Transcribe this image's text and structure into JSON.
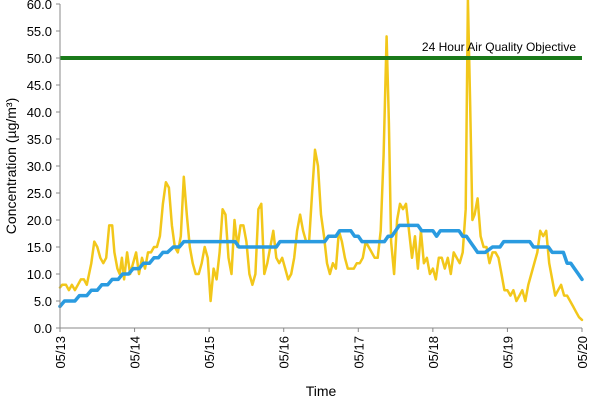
{
  "chart_data": {
    "type": "line",
    "xlabel": "Time",
    "ylabel": "Concentration (µg/m³)",
    "ylim": [
      0,
      60
    ],
    "yticks": [
      "0.0",
      "5.0",
      "10.0",
      "15.0",
      "20.0",
      "25.0",
      "30.0",
      "35.0",
      "40.0",
      "45.0",
      "50.0",
      "55.0",
      "60.0"
    ],
    "xticks": [
      "05/13",
      "05/14",
      "05/15",
      "05/16",
      "05/17",
      "05/18",
      "05/19",
      "05/20"
    ],
    "grid": false,
    "colors": {
      "hourly": "#f2c71a",
      "rolling": "#2a9be0",
      "objective": "#1a7a1a"
    },
    "objective": {
      "label": "24 Hour Air Quality Objective",
      "value": 50
    },
    "series": [
      {
        "key": "hourly",
        "points": [
          [
            0.0,
            7.5
          ],
          [
            0.03,
            8
          ],
          [
            0.08,
            8
          ],
          [
            0.12,
            7
          ],
          [
            0.16,
            8
          ],
          [
            0.2,
            7
          ],
          [
            0.24,
            8
          ],
          [
            0.28,
            9
          ],
          [
            0.32,
            9
          ],
          [
            0.36,
            8
          ],
          [
            0.42,
            12
          ],
          [
            0.46,
            16
          ],
          [
            0.5,
            15
          ],
          [
            0.54,
            13
          ],
          [
            0.58,
            12
          ],
          [
            0.62,
            13
          ],
          [
            0.66,
            19
          ],
          [
            0.7,
            19
          ],
          [
            0.73,
            14
          ],
          [
            0.77,
            11
          ],
          [
            0.8,
            10
          ],
          [
            0.83,
            13
          ],
          [
            0.86,
            9
          ],
          [
            0.9,
            14
          ],
          [
            0.94,
            10
          ],
          [
            0.98,
            12
          ],
          [
            1.02,
            14
          ],
          [
            1.06,
            10
          ],
          [
            1.1,
            13
          ],
          [
            1.14,
            11
          ],
          [
            1.18,
            14
          ],
          [
            1.22,
            14
          ],
          [
            1.26,
            15
          ],
          [
            1.3,
            15
          ],
          [
            1.34,
            17
          ],
          [
            1.38,
            23
          ],
          [
            1.42,
            27
          ],
          [
            1.46,
            26
          ],
          [
            1.5,
            19
          ],
          [
            1.54,
            15
          ],
          [
            1.58,
            14
          ],
          [
            1.62,
            17
          ],
          [
            1.66,
            28
          ],
          [
            1.7,
            21
          ],
          [
            1.74,
            15
          ],
          [
            1.78,
            12
          ],
          [
            1.82,
            10
          ],
          [
            1.86,
            10
          ],
          [
            1.9,
            12
          ],
          [
            1.94,
            15
          ],
          [
            1.98,
            13
          ],
          [
            2.02,
            5
          ],
          [
            2.06,
            11
          ],
          [
            2.1,
            9
          ],
          [
            2.14,
            14
          ],
          [
            2.18,
            22
          ],
          [
            2.22,
            21
          ],
          [
            2.26,
            13
          ],
          [
            2.3,
            10
          ],
          [
            2.34,
            20
          ],
          [
            2.38,
            15
          ],
          [
            2.42,
            19
          ],
          [
            2.46,
            19
          ],
          [
            2.5,
            16
          ],
          [
            2.54,
            10
          ],
          [
            2.58,
            8
          ],
          [
            2.62,
            10
          ],
          [
            2.66,
            22
          ],
          [
            2.7,
            23
          ],
          [
            2.74,
            10
          ],
          [
            2.78,
            12
          ],
          [
            2.82,
            15
          ],
          [
            2.86,
            18
          ],
          [
            2.9,
            13
          ],
          [
            2.94,
            12
          ],
          [
            2.98,
            13
          ],
          [
            3.02,
            11
          ],
          [
            3.06,
            9
          ],
          [
            3.1,
            10
          ],
          [
            3.14,
            13
          ],
          [
            3.18,
            18
          ],
          [
            3.22,
            21
          ],
          [
            3.26,
            18
          ],
          [
            3.3,
            16
          ],
          [
            3.34,
            16
          ],
          [
            3.38,
            25
          ],
          [
            3.42,
            33
          ],
          [
            3.46,
            30
          ],
          [
            3.5,
            21
          ],
          [
            3.54,
            17
          ],
          [
            3.58,
            12
          ],
          [
            3.62,
            10
          ],
          [
            3.66,
            12
          ],
          [
            3.7,
            11
          ],
          [
            3.74,
            18
          ],
          [
            3.78,
            16
          ],
          [
            3.82,
            13
          ],
          [
            3.86,
            11
          ],
          [
            3.9,
            11
          ],
          [
            3.94,
            11
          ],
          [
            3.98,
            12
          ],
          [
            4.02,
            12
          ],
          [
            4.06,
            13
          ],
          [
            4.1,
            16
          ],
          [
            4.14,
            15
          ],
          [
            4.18,
            14
          ],
          [
            4.22,
            13
          ],
          [
            4.26,
            13
          ],
          [
            4.3,
            18
          ],
          [
            4.34,
            32
          ],
          [
            4.38,
            54
          ],
          [
            4.41,
            38
          ],
          [
            4.44,
            16
          ],
          [
            4.48,
            10
          ],
          [
            4.52,
            20
          ],
          [
            4.56,
            23
          ],
          [
            4.6,
            22
          ],
          [
            4.64,
            23
          ],
          [
            4.68,
            18
          ],
          [
            4.72,
            13
          ],
          [
            4.76,
            17
          ],
          [
            4.8,
            11
          ],
          [
            4.84,
            18
          ],
          [
            4.88,
            12
          ],
          [
            4.92,
            13
          ],
          [
            4.96,
            10
          ],
          [
            5.0,
            11
          ],
          [
            5.04,
            9
          ],
          [
            5.08,
            13
          ],
          [
            5.12,
            13
          ],
          [
            5.16,
            11
          ],
          [
            5.2,
            13
          ],
          [
            5.24,
            10
          ],
          [
            5.28,
            14
          ],
          [
            5.32,
            13
          ],
          [
            5.36,
            12
          ],
          [
            5.4,
            14
          ],
          [
            5.44,
            22
          ],
          [
            5.47,
            61
          ],
          [
            5.5,
            42
          ],
          [
            5.53,
            20
          ],
          [
            5.56,
            21
          ],
          [
            5.6,
            24
          ],
          [
            5.64,
            17
          ],
          [
            5.68,
            15
          ],
          [
            5.72,
            15
          ],
          [
            5.76,
            12
          ],
          [
            5.8,
            14
          ],
          [
            5.84,
            14
          ],
          [
            5.88,
            13
          ],
          [
            5.92,
            10
          ],
          [
            5.96,
            7
          ],
          [
            6.0,
            7
          ],
          [
            6.04,
            6
          ],
          [
            6.08,
            7
          ],
          [
            6.12,
            5
          ],
          [
            6.16,
            6
          ],
          [
            6.2,
            7
          ],
          [
            6.24,
            5
          ],
          [
            6.28,
            8
          ],
          [
            6.32,
            10
          ],
          [
            6.36,
            12
          ],
          [
            6.4,
            14
          ],
          [
            6.44,
            18
          ],
          [
            6.48,
            17
          ],
          [
            6.52,
            18
          ],
          [
            6.56,
            12
          ],
          [
            6.6,
            9
          ],
          [
            6.64,
            6
          ],
          [
            6.68,
            7
          ],
          [
            6.72,
            8
          ],
          [
            6.76,
            6
          ],
          [
            6.8,
            6
          ],
          [
            6.84,
            5
          ],
          [
            6.88,
            4
          ],
          [
            6.92,
            3
          ],
          [
            6.96,
            2
          ],
          [
            7.0,
            1.5
          ]
        ]
      },
      {
        "key": "rolling",
        "points": [
          [
            0.0,
            4
          ],
          [
            0.06,
            5
          ],
          [
            0.2,
            5
          ],
          [
            0.26,
            6
          ],
          [
            0.36,
            6
          ],
          [
            0.42,
            7
          ],
          [
            0.5,
            7
          ],
          [
            0.56,
            8
          ],
          [
            0.64,
            8
          ],
          [
            0.7,
            9
          ],
          [
            0.78,
            9
          ],
          [
            0.84,
            10
          ],
          [
            0.92,
            10
          ],
          [
            0.98,
            11
          ],
          [
            1.06,
            11
          ],
          [
            1.12,
            12
          ],
          [
            1.2,
            12
          ],
          [
            1.26,
            13
          ],
          [
            1.32,
            13
          ],
          [
            1.38,
            14
          ],
          [
            1.44,
            14
          ],
          [
            1.52,
            15
          ],
          [
            1.6,
            15
          ],
          [
            1.66,
            16
          ],
          [
            1.95,
            16
          ],
          [
            2.05,
            16
          ],
          [
            2.35,
            16
          ],
          [
            2.4,
            15
          ],
          [
            2.9,
            15
          ],
          [
            2.95,
            16
          ],
          [
            3.55,
            16
          ],
          [
            3.6,
            17
          ],
          [
            3.7,
            17
          ],
          [
            3.75,
            18
          ],
          [
            3.9,
            18
          ],
          [
            3.95,
            17
          ],
          [
            4.0,
            17
          ],
          [
            4.05,
            16
          ],
          [
            4.35,
            16
          ],
          [
            4.4,
            17
          ],
          [
            4.45,
            17
          ],
          [
            4.5,
            18
          ],
          [
            4.55,
            19
          ],
          [
            4.8,
            19
          ],
          [
            4.85,
            18
          ],
          [
            5.0,
            18
          ],
          [
            5.05,
            17
          ],
          [
            5.1,
            18
          ],
          [
            5.35,
            18
          ],
          [
            5.4,
            17
          ],
          [
            5.45,
            17
          ],
          [
            5.5,
            16
          ],
          [
            5.55,
            15
          ],
          [
            5.6,
            14
          ],
          [
            5.7,
            14
          ],
          [
            5.8,
            15
          ],
          [
            5.9,
            15
          ],
          [
            5.95,
            16
          ],
          [
            6.3,
            16
          ],
          [
            6.35,
            15
          ],
          [
            6.55,
            15
          ],
          [
            6.6,
            14
          ],
          [
            6.75,
            14
          ],
          [
            6.8,
            12
          ],
          [
            6.85,
            12
          ],
          [
            6.9,
            11
          ],
          [
            6.95,
            10
          ],
          [
            7.0,
            9
          ]
        ]
      }
    ]
  }
}
